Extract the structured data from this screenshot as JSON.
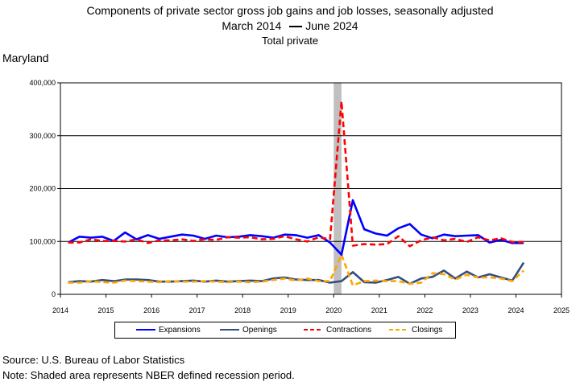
{
  "title": {
    "line1": "Components of private sector gross job gains and job losses, seasonally adjusted",
    "line2_start": "March 2014",
    "line2_end": "June 2024",
    "line3": "Total private"
  },
  "region": "Maryland",
  "source": "Source: U.S. Bureau of Labor Statistics",
  "note": "Note: Shaded area represents NBER defined recession period.",
  "chart_data": {
    "type": "line",
    "xlim": [
      2014,
      2025
    ],
    "ylim": [
      0,
      400000
    ],
    "xticks": [
      "2014",
      "2015",
      "2016",
      "2017",
      "2018",
      "2019",
      "2020",
      "2021",
      "2022",
      "2023",
      "2024",
      "2025"
    ],
    "yticks": [
      "0",
      "100,000",
      "200,000",
      "300,000",
      "400,000"
    ],
    "grid": "horizontal",
    "legend_position": "bottom",
    "recession": [
      2020.0,
      2020.17
    ],
    "x": [
      2014.17,
      2014.42,
      2014.67,
      2014.92,
      2015.17,
      2015.42,
      2015.67,
      2015.92,
      2016.17,
      2016.42,
      2016.67,
      2016.92,
      2017.17,
      2017.42,
      2017.67,
      2017.92,
      2018.17,
      2018.42,
      2018.67,
      2018.92,
      2019.17,
      2019.42,
      2019.67,
      2019.92,
      2020.17,
      2020.42,
      2020.67,
      2020.92,
      2021.17,
      2021.42,
      2021.67,
      2021.92,
      2022.17,
      2022.42,
      2022.67,
      2022.92,
      2023.17,
      2023.42,
      2023.67,
      2023.92,
      2024.17
    ],
    "series": [
      {
        "name": "Expansions",
        "color": "#0000ff",
        "dash": "solid",
        "values": [
          98000,
          109000,
          107000,
          109000,
          101000,
          117000,
          104000,
          112000,
          105000,
          109000,
          113000,
          111000,
          105000,
          111000,
          108000,
          109000,
          112000,
          110000,
          107000,
          113000,
          112000,
          107000,
          112000,
          98000,
          75000,
          178000,
          123000,
          115000,
          111000,
          125000,
          133000,
          113000,
          106000,
          113000,
          110000,
          111000,
          112000,
          98000,
          103000,
          97000,
          97000
        ]
      },
      {
        "name": "Openings",
        "color": "#334d80",
        "dash": "solid",
        "values": [
          23000,
          25000,
          24000,
          27000,
          25000,
          28000,
          28000,
          27000,
          24000,
          24000,
          25000,
          26000,
          24000,
          26000,
          24000,
          25000,
          26000,
          25000,
          30000,
          32000,
          28000,
          27000,
          27000,
          22000,
          25000,
          42000,
          23000,
          22000,
          27000,
          33000,
          20000,
          30000,
          33000,
          45000,
          30000,
          43000,
          32000,
          38000,
          32000,
          26000,
          60000
        ]
      },
      {
        "name": "Contractions",
        "color": "#ff0000",
        "dash": "dashed",
        "values": [
          98000,
          98000,
          104000,
          101000,
          101000,
          100000,
          104000,
          97000,
          102000,
          102000,
          104000,
          101000,
          104000,
          103000,
          108000,
          107000,
          108000,
          104000,
          105000,
          110000,
          104000,
          100000,
          108000,
          104000,
          365000,
          92000,
          95000,
          94000,
          95000,
          110000,
          91000,
          102000,
          108000,
          102000,
          105000,
          99000,
          108000,
          102000,
          106000,
          99000,
          99000
        ]
      },
      {
        "name": "Closings",
        "color": "#ffa500",
        "dash": "dashed",
        "values": [
          22000,
          22000,
          25000,
          23000,
          22000,
          26000,
          25000,
          24000,
          23000,
          25000,
          24000,
          24000,
          25000,
          24000,
          23000,
          24000,
          23000,
          24000,
          27000,
          30000,
          26000,
          30000,
          25000,
          25000,
          75000,
          17000,
          25000,
          26000,
          25000,
          25000,
          20000,
          22000,
          40000,
          38000,
          28000,
          37000,
          32000,
          32000,
          30000,
          25000,
          45000
        ]
      }
    ]
  }
}
